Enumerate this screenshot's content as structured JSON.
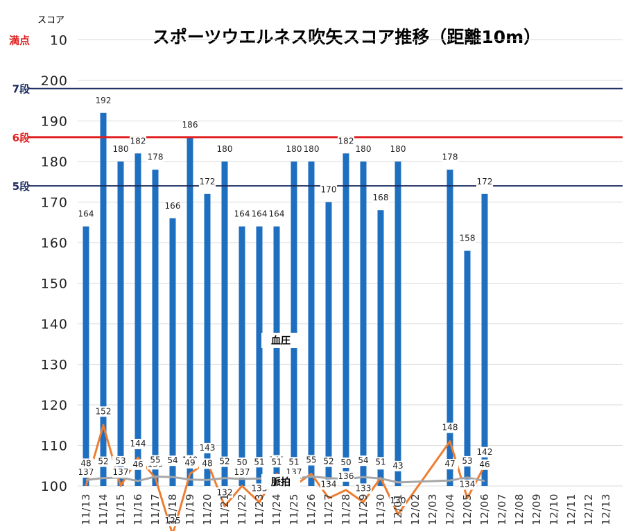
{
  "title": "スポーツウエルネス吹矢スコア推移（距離10m）",
  "unit_label": "スコア",
  "chart_data": {
    "type": "bar",
    "title": "スポーツウエルネス吹矢スコア推移（距離10m）",
    "ylabel": "スコア",
    "ylim": [
      100,
      210
    ],
    "ytick_labels": [
      "100",
      "110",
      "120",
      "130",
      "140",
      "150",
      "160",
      "170",
      "180",
      "190",
      "200",
      "10"
    ],
    "categories": [
      "11/13",
      "11/14",
      "11/15",
      "11/16",
      "11/17",
      "11/18",
      "11/19",
      "11/20",
      "11/21",
      "11/22",
      "11/23",
      "11/24",
      "11/25",
      "11/26",
      "11/27",
      "11/28",
      "11/29",
      "11/30",
      "12/01",
      "12/02",
      "12/03",
      "12/04",
      "12/05",
      "12/06",
      "12/07",
      "12/08",
      "12/09",
      "12/10",
      "12/11",
      "12/12",
      "12/13"
    ],
    "category_labels": [
      "11/13",
      "11/14",
      "11/15",
      "11/16",
      "11/17",
      "11/18",
      "11/19",
      "11/20",
      "11/21",
      "11/22",
      "11/23",
      "11/24",
      "11/25",
      "11/26",
      "11/27",
      "11/28",
      "11/29",
      "11/30",
      "12/01",
      "12/02",
      "12/03",
      "12/04",
      "12/05",
      "12/06",
      "12/07",
      "12/08",
      "12/09",
      "12/10",
      "12/11",
      "12/12",
      "12/13"
    ],
    "series": [
      {
        "kind": "bar",
        "color": "#1f6fc0",
        "values": [
          164,
          192,
          180,
          182,
          178,
          166,
          186,
          172,
          180,
          164,
          164,
          164,
          180,
          180,
          170,
          182,
          180,
          168,
          180,
          null,
          null,
          178,
          158,
          172,
          null,
          null,
          null,
          null,
          null,
          null,
          null
        ]
      },
      {
        "kind": "line",
        "name": "血圧",
        "color": "#ed7d31",
        "values": [
          137,
          152,
          137,
          144,
          139,
          125,
          140,
          143,
          132,
          137,
          133,
          140,
          137,
          140,
          134,
          136,
          133,
          139,
          130,
          null,
          null,
          148,
          134,
          142,
          null,
          null,
          null,
          null,
          null,
          null,
          null
        ]
      },
      {
        "kind": "line",
        "name": "脈拍",
        "color": "#a6a6a6",
        "values": [
          48,
          52,
          53,
          46,
          55,
          54,
          49,
          48,
          52,
          50,
          51,
          51,
          51,
          55,
          52,
          50,
          54,
          51,
          43,
          null,
          null,
          47,
          53,
          46,
          null,
          null,
          null,
          null,
          null,
          null,
          null
        ]
      }
    ],
    "reference_lines": [
      {
        "label": "満点",
        "color": "#e02020"
      },
      {
        "label": "7段",
        "value": 198,
        "color": "#1a2a5e"
      },
      {
        "label": "6段",
        "value": 186,
        "color": "#e02020"
      },
      {
        "label": "5段",
        "value": 174,
        "color": "#1a2a5e"
      }
    ],
    "grid": true
  }
}
